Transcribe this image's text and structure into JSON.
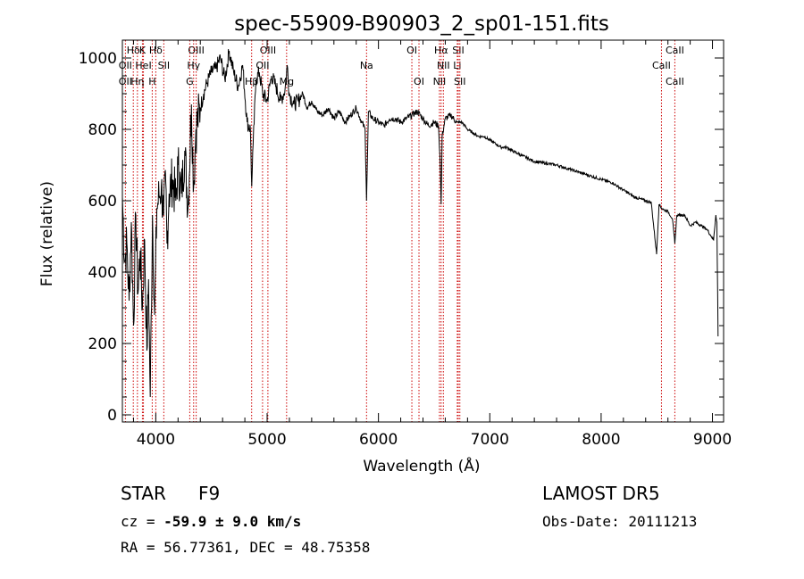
{
  "chart_data": {
    "type": "line",
    "title": "spec-55909-B90903_2_sp01-151.fits",
    "xlabel": "Wavelength (Å)",
    "ylabel": "Flux (relative)",
    "xlim": [
      3700,
      9100
    ],
    "ylim": [
      -20,
      1050
    ],
    "xticks": [
      4000,
      5000,
      6000,
      7000,
      8000,
      9000
    ],
    "yticks": [
      0,
      200,
      400,
      600,
      800,
      1000
    ],
    "grid": false,
    "series": [
      {
        "color": "#000000",
        "x": [
          3700,
          3720,
          3740,
          3760,
          3780,
          3800,
          3820,
          3840,
          3860,
          3880,
          3900,
          3920,
          3935,
          3950,
          3970,
          3990,
          4010,
          4030,
          4050,
          4070,
          4090,
          4100,
          4120,
          4150,
          4180,
          4200,
          4230,
          4260,
          4290,
          4320,
          4340,
          4360,
          4400,
          4430,
          4460,
          4500,
          4540,
          4580,
          4620,
          4660,
          4700,
          4740,
          4780,
          4820,
          4850,
          4862,
          4875,
          4900,
          4930,
          4960,
          5000,
          5040,
          5080,
          5120,
          5160,
          5180,
          5200,
          5240,
          5280,
          5320,
          5360,
          5400,
          5450,
          5500,
          5550,
          5600,
          5650,
          5700,
          5750,
          5800,
          5850,
          5880,
          5893,
          5910,
          5950,
          6000,
          6050,
          6100,
          6150,
          6200,
          6250,
          6300,
          6350,
          6400,
          6450,
          6500,
          6540,
          6555,
          6563,
          6572,
          6600,
          6650,
          6700,
          6750,
          6800,
          6850,
          6900,
          6950,
          7000,
          7050,
          7100,
          7150,
          7200,
          7300,
          7400,
          7500,
          7600,
          7700,
          7800,
          7900,
          8000,
          8100,
          8200,
          8300,
          8400,
          8450,
          8498,
          8520,
          8542,
          8560,
          8600,
          8640,
          8662,
          8680,
          8750,
          8800,
          8850,
          8900,
          8950,
          8990,
          9010,
          9030,
          9040,
          9050
        ],
        "y": [
          610,
          430,
          480,
          320,
          540,
          250,
          560,
          340,
          460,
          300,
          490,
          180,
          380,
          50,
          560,
          280,
          580,
          610,
          640,
          560,
          650,
          480,
          620,
          660,
          600,
          700,
          620,
          740,
          580,
          870,
          640,
          800,
          860,
          900,
          930,
          960,
          970,
          1000,
          940,
          1020,
          960,
          920,
          980,
          820,
          800,
          640,
          760,
          940,
          960,
          900,
          880,
          950,
          920,
          880,
          910,
          980,
          900,
          870,
          880,
          900,
          860,
          880,
          850,
          840,
          860,
          830,
          850,
          820,
          840,
          860,
          820,
          800,
          600,
          850,
          830,
          820,
          810,
          830,
          830,
          820,
          830,
          840,
          850,
          830,
          810,
          820,
          810,
          700,
          590,
          780,
          830,
          840,
          820,
          820,
          800,
          790,
          780,
          780,
          770,
          760,
          750,
          750,
          740,
          725,
          710,
          705,
          700,
          690,
          680,
          670,
          660,
          650,
          630,
          610,
          600,
          595,
          450,
          590,
          580,
          575,
          570,
          550,
          480,
          560,
          560,
          530,
          540,
          530,
          520,
          500,
          490,
          560,
          540,
          220
        ]
      }
    ],
    "line_markers": [
      {
        "name": "Hδ",
        "wavelength": 3798,
        "row": 1
      },
      {
        "name": "K",
        "wavelength": 3880,
        "row": 1
      },
      {
        "name": "Hδ",
        "wavelength": 4000,
        "row": 1
      },
      {
        "name": "OIII",
        "wavelength": 4363,
        "row": 1
      },
      {
        "name": "OIII",
        "wavelength": 5007,
        "row": 1
      },
      {
        "name": "OI",
        "wavelength": 6300,
        "row": 1
      },
      {
        "name": "Hα",
        "wavelength": 6563,
        "row": 1
      },
      {
        "name": "SII",
        "wavelength": 6717,
        "row": 1
      },
      {
        "name": "CaII",
        "wavelength": 8662,
        "row": 1
      },
      {
        "name": "OII",
        "wavelength": 3727,
        "row": 2
      },
      {
        "name": "HeI",
        "wavelength": 3889,
        "row": 2
      },
      {
        "name": "SII",
        "wavelength": 4072,
        "row": 2
      },
      {
        "name": "Hγ",
        "wavelength": 4340,
        "row": 2
      },
      {
        "name": "OII",
        "wavelength": 4959,
        "row": 2
      },
      {
        "name": "Na",
        "wavelength": 5893,
        "row": 2
      },
      {
        "name": "NII",
        "wavelength": 6583,
        "row": 2
      },
      {
        "name": "Li",
        "wavelength": 6708,
        "row": 2
      },
      {
        "name": "CaII",
        "wavelength": 8542,
        "row": 2
      },
      {
        "name": "OII",
        "wavelength": 3727,
        "row": 3
      },
      {
        "name": "Hη",
        "wavelength": 3835,
        "row": 3
      },
      {
        "name": "H",
        "wavelength": 3968,
        "row": 3
      },
      {
        "name": "G",
        "wavelength": 4305,
        "row": 3
      },
      {
        "name": "Hβ",
        "wavelength": 4861,
        "row": 3
      },
      {
        "name": "Mg",
        "wavelength": 5175,
        "row": 3
      },
      {
        "name": "OI",
        "wavelength": 6364,
        "row": 3
      },
      {
        "name": "NII",
        "wavelength": 6548,
        "row": 3
      },
      {
        "name": "SII",
        "wavelength": 6731,
        "row": 3
      },
      {
        "name": "CaII",
        "wavelength": 8662,
        "row": 3
      }
    ],
    "marker_color": "#cc0000"
  },
  "info": {
    "object_class": "STAR",
    "subclass": "F9",
    "survey": "LAMOST DR5",
    "cz_label": "cz = ",
    "cz_value": "-59.9 ± 9.0 km/s",
    "obs_date": "Obs-Date: 20111213",
    "coords": "RA =  56.77361, DEC =  48.75358"
  }
}
